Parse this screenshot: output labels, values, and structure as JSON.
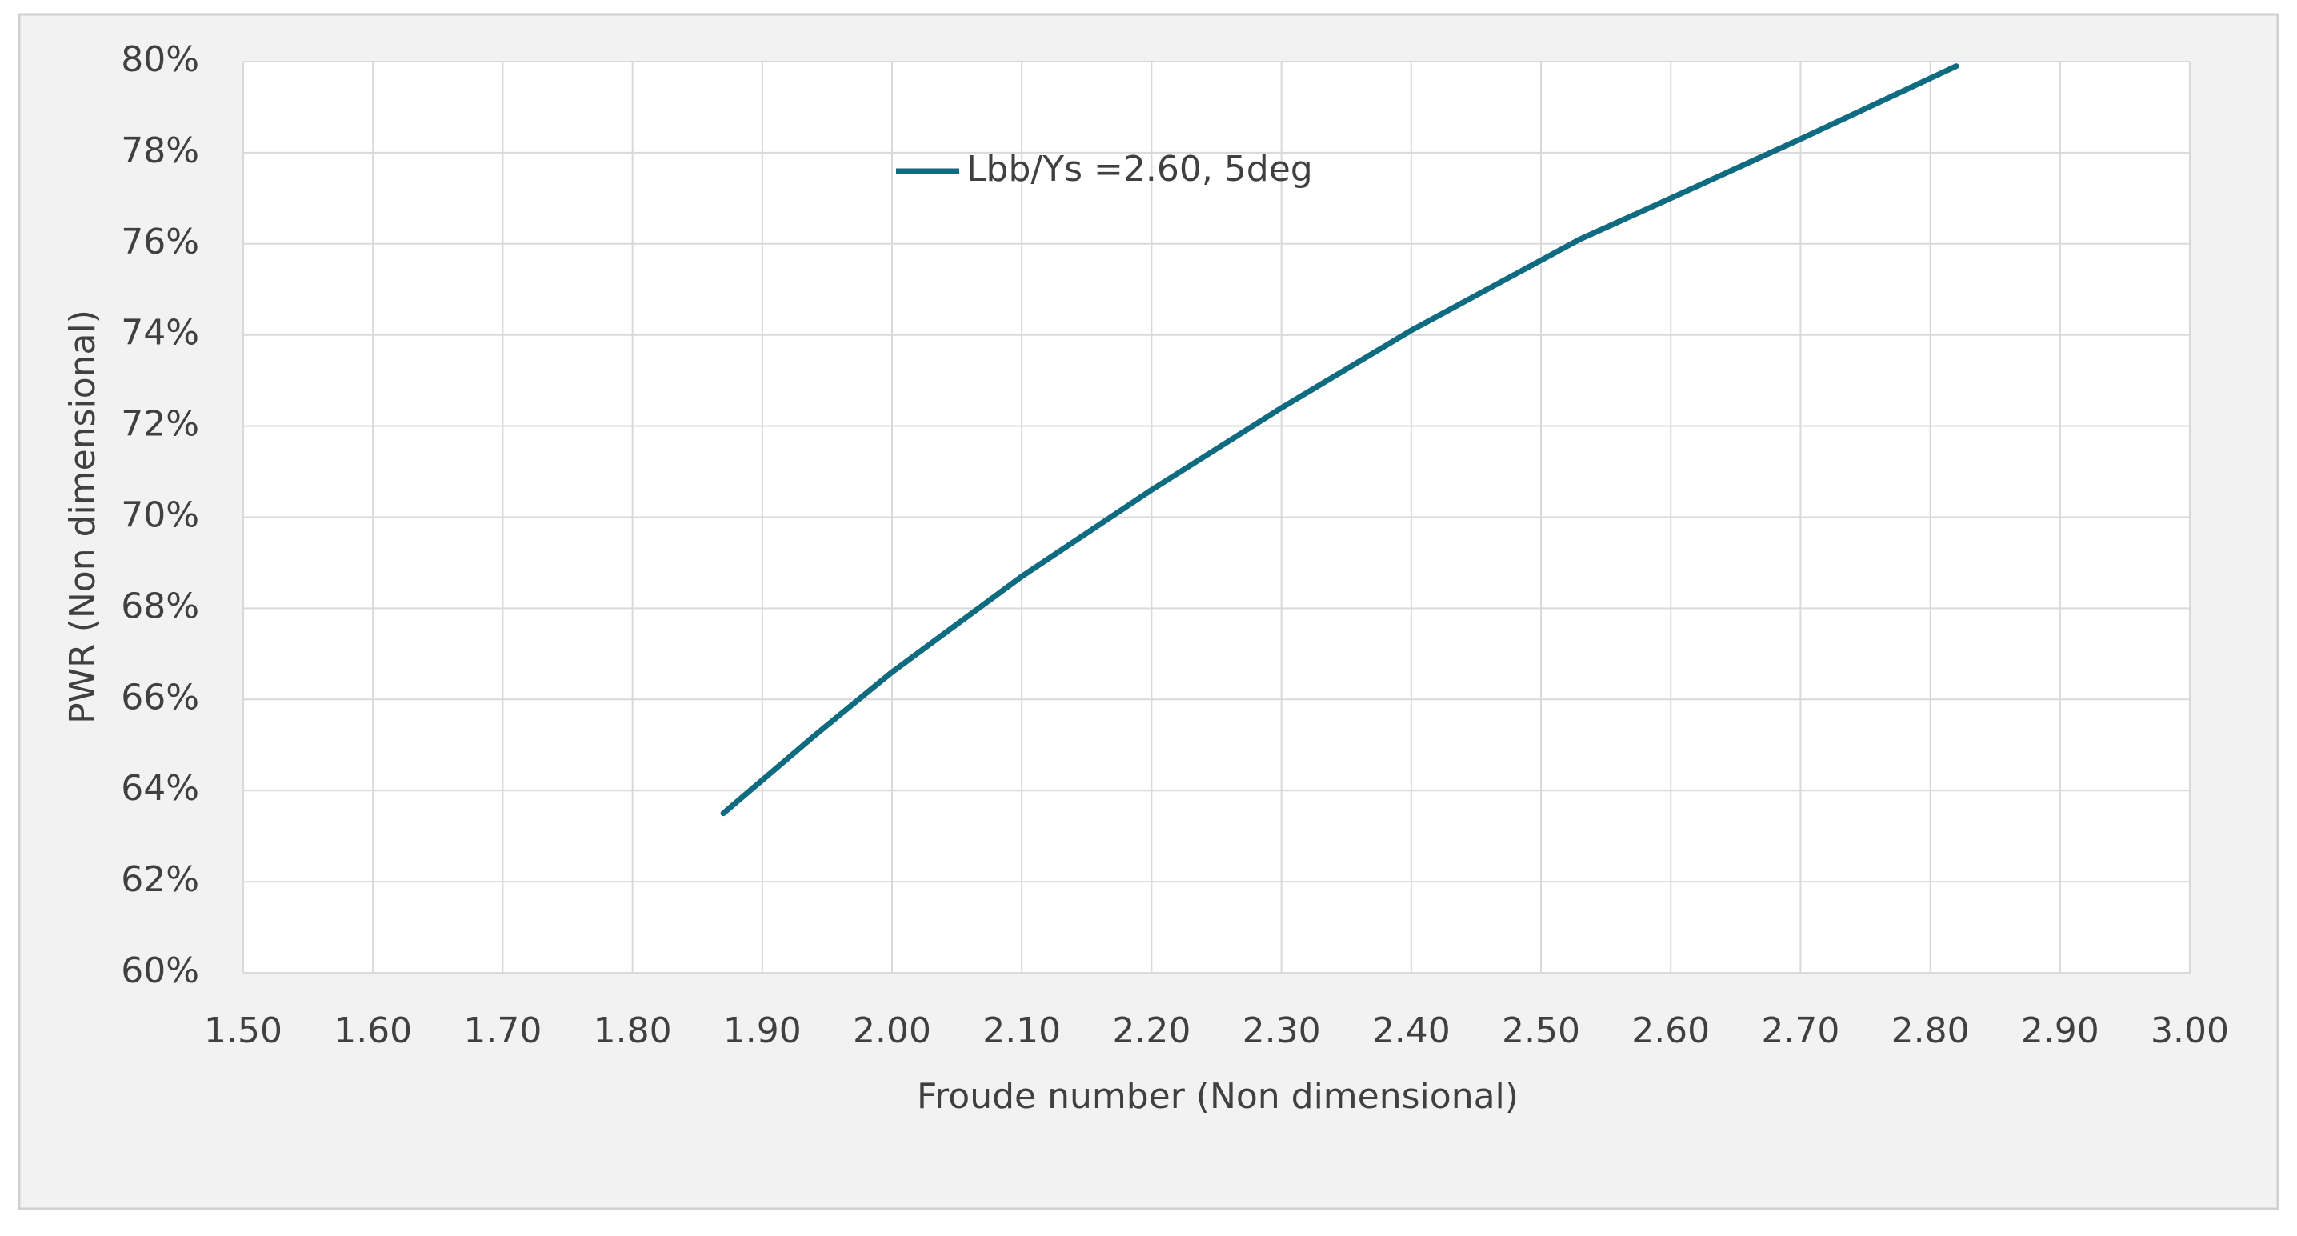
{
  "chart_data": {
    "type": "line",
    "xlabel": "Froude number (Non dimensional)",
    "ylabel": "PWR (Non dimensional)",
    "series": [
      {
        "name": "Lbb/Ys =2.60, 5deg",
        "color": "#0f6b80",
        "x": [
          1.87,
          1.94,
          2.0,
          2.1,
          2.2,
          2.3,
          2.4,
          2.53,
          2.6,
          2.7,
          2.82
        ],
        "values": [
          63.5,
          65.2,
          66.6,
          68.7,
          70.6,
          72.4,
          74.1,
          76.1,
          77.0,
          78.3,
          79.9
        ]
      }
    ],
    "xlim": [
      1.5,
      3.0
    ],
    "xticks": [
      {
        "value": 1.5,
        "label": "1.50"
      },
      {
        "value": 1.6,
        "label": "1.60"
      },
      {
        "value": 1.7,
        "label": "1.70"
      },
      {
        "value": 1.8,
        "label": "1.80"
      },
      {
        "value": 1.9,
        "label": "1.90"
      },
      {
        "value": 2.0,
        "label": "2.00"
      },
      {
        "value": 2.1,
        "label": "2.10"
      },
      {
        "value": 2.2,
        "label": "2.20"
      },
      {
        "value": 2.3,
        "label": "2.30"
      },
      {
        "value": 2.4,
        "label": "2.40"
      },
      {
        "value": 2.5,
        "label": "2.50"
      },
      {
        "value": 2.6,
        "label": "2.60"
      },
      {
        "value": 2.7,
        "label": "2.70"
      },
      {
        "value": 2.8,
        "label": "2.80"
      },
      {
        "value": 2.9,
        "label": "2.90"
      },
      {
        "value": 3.0,
        "label": "3.00"
      }
    ],
    "ylim": [
      60,
      80
    ],
    "yticks": [
      {
        "value": 60,
        "label": "60%"
      },
      {
        "value": 62,
        "label": "62%"
      },
      {
        "value": 64,
        "label": "64%"
      },
      {
        "value": 66,
        "label": "66%"
      },
      {
        "value": 68,
        "label": "68%"
      },
      {
        "value": 70,
        "label": "70%"
      },
      {
        "value": 72,
        "label": "72%"
      },
      {
        "value": 74,
        "label": "74%"
      },
      {
        "value": 76,
        "label": "76%"
      },
      {
        "value": 78,
        "label": "78%"
      },
      {
        "value": 80,
        "label": "80%"
      }
    ],
    "grid": true
  }
}
